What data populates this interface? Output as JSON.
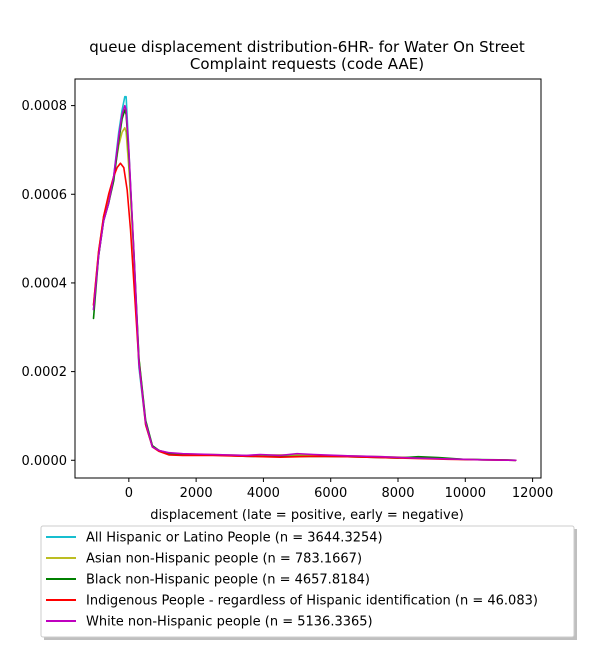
{
  "chart_data": {
    "type": "line",
    "title": "queue displacement distribution-6HR-  for Water On Street\nComplaint  requests (code AAE)",
    "xlabel": "displacement (late = positive, early = negative)",
    "ylabel": "",
    "xlim": [
      -1600,
      12250
    ],
    "ylim": [
      -4e-05,
      0.00086
    ],
    "x_ticks": [
      0,
      2000,
      4000,
      6000,
      8000,
      10000,
      12000
    ],
    "x_tick_labels": [
      "0",
      "2000",
      "4000",
      "6000",
      "8000",
      "10000",
      "12000"
    ],
    "y_ticks": [
      0.0,
      0.0002,
      0.0004,
      0.0006,
      0.0008
    ],
    "y_tick_labels": [
      "0.0000",
      "0.0002",
      "0.0004",
      "0.0006",
      "0.0008"
    ],
    "grid": false,
    "legend_position": "below plot",
    "series": [
      {
        "name": "All Hispanic or Latino People (n = 3644.3254)",
        "color": "#17becf",
        "x": [
          -1050,
          -900,
          -750,
          -600,
          -450,
          -300,
          -200,
          -120,
          -80,
          0,
          150,
          300,
          500,
          700,
          900,
          1200,
          1600,
          2500,
          3500,
          4500,
          5500,
          6500,
          7500,
          8500,
          9500,
          10500,
          11500
        ],
        "y": [
          0.00034,
          0.00046,
          0.00054,
          0.00058,
          0.00064,
          0.00074,
          0.00079,
          0.00082,
          0.00082,
          0.0007,
          0.00046,
          0.00021,
          8e-05,
          3e-05,
          2.2e-05,
          1.4e-05,
          1.3e-05,
          1.2e-05,
          1e-05,
          1.1e-05,
          1e-05,
          9e-06,
          7e-06,
          6e-06,
          3e-06,
          1e-06,
          0.0
        ]
      },
      {
        "name": "Asian non-Hispanic people (n = 783.1667)",
        "color": "#bcbd22",
        "x": [
          -1050,
          -900,
          -750,
          -600,
          -450,
          -300,
          -200,
          -120,
          -80,
          0,
          150,
          300,
          500,
          700,
          900,
          1200,
          1600,
          2500,
          3500,
          4500,
          5500,
          6500,
          7500,
          8500,
          9500,
          10500,
          11500
        ],
        "y": [
          0.00035,
          0.00047,
          0.00055,
          0.00059,
          0.00064,
          0.00071,
          0.00074,
          0.00075,
          0.00074,
          0.00066,
          0.00046,
          0.00023,
          8.5e-05,
          3.2e-05,
          2.2e-05,
          1.6e-05,
          1.4e-05,
          1.3e-05,
          1.1e-05,
          1.2e-05,
          1.1e-05,
          1e-05,
          8e-06,
          6e-06,
          3e-06,
          1e-06,
          0.0
        ]
      },
      {
        "name": "Black non-Hispanic people (n = 4657.8184)",
        "color": "#008000",
        "x": [
          -1050,
          -900,
          -750,
          -600,
          -450,
          -300,
          -200,
          -120,
          -80,
          0,
          150,
          300,
          500,
          700,
          900,
          1200,
          1600,
          2500,
          3500,
          4500,
          5500,
          6500,
          7500,
          8000,
          8600,
          9200,
          10000,
          11000,
          11500
        ],
        "y": [
          0.00032,
          0.00046,
          0.00054,
          0.00058,
          0.00063,
          0.00072,
          0.00077,
          0.00079,
          0.00078,
          0.00069,
          0.00047,
          0.00023,
          9e-05,
          3.3e-05,
          2.2e-05,
          1.5e-05,
          1.3e-05,
          1.2e-05,
          9e-06,
          8e-06,
          9e-06,
          8e-06,
          6e-06,
          5e-06,
          8e-06,
          6e-06,
          2e-06,
          1e-06,
          0.0
        ]
      },
      {
        "name": "Indigenous People - regardless of Hispanic identification (n = 46.083)",
        "color": "#ff0000",
        "x": [
          -1050,
          -900,
          -750,
          -600,
          -450,
          -350,
          -250,
          -150,
          -50,
          50,
          150,
          300,
          500,
          700,
          900,
          1200,
          1600,
          2500,
          3500,
          4500,
          5500,
          6500,
          7500,
          8500,
          9500,
          10500,
          11500
        ],
        "y": [
          0.00035,
          0.00047,
          0.00055,
          0.0006,
          0.00064,
          0.00066,
          0.00067,
          0.00066,
          0.00061,
          0.00052,
          0.0004,
          0.00022,
          8e-05,
          3e-05,
          2e-05,
          1.2e-05,
          1.1e-05,
          1.1e-05,
          9e-06,
          7e-06,
          9e-06,
          8e-06,
          6e-06,
          4e-06,
          2e-06,
          1e-06,
          0.0
        ]
      },
      {
        "name": "White non-Hispanic people (n = 5136.3365)",
        "color": "#bf00bf",
        "x": [
          -1050,
          -900,
          -750,
          -600,
          -450,
          -300,
          -200,
          -120,
          -80,
          0,
          150,
          300,
          500,
          700,
          900,
          1200,
          1600,
          2500,
          3500,
          3900,
          4500,
          5000,
          5500,
          6500,
          7500,
          8500,
          9500,
          10500,
          11500
        ],
        "y": [
          0.00034,
          0.00046,
          0.00054,
          0.00058,
          0.00064,
          0.00073,
          0.00078,
          0.0008,
          0.00079,
          0.0007,
          0.00047,
          0.00022,
          8.5e-05,
          3e-05,
          2.2e-05,
          1.7e-05,
          1.5e-05,
          1.3e-05,
          1.1e-05,
          1.3e-05,
          1.1e-05,
          1.5e-05,
          1.3e-05,
          1e-05,
          8e-06,
          5e-06,
          3e-06,
          1e-06,
          0.0
        ]
      }
    ]
  }
}
